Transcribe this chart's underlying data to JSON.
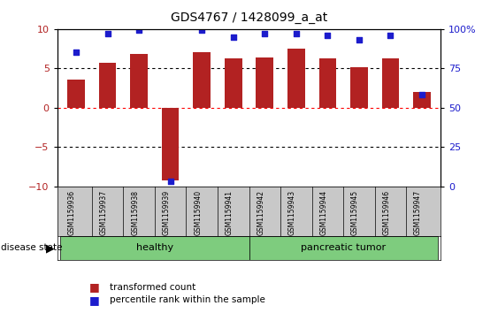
{
  "title": "GDS4767 / 1428099_a_at",
  "samples": [
    "GSM1159936",
    "GSM1159937",
    "GSM1159938",
    "GSM1159939",
    "GSM1159940",
    "GSM1159941",
    "GSM1159942",
    "GSM1159943",
    "GSM1159944",
    "GSM1159945",
    "GSM1159946",
    "GSM1159947"
  ],
  "bar_values": [
    3.5,
    5.7,
    6.8,
    -9.3,
    7.0,
    6.3,
    6.4,
    7.5,
    6.3,
    5.1,
    6.2,
    2.0
  ],
  "percentile_values": [
    85,
    97,
    99,
    3,
    99,
    95,
    97,
    97,
    96,
    93,
    96,
    58
  ],
  "bar_color": "#B22222",
  "dot_color": "#1C1CCC",
  "ylim_left": [
    -10,
    10
  ],
  "ylim_right": [
    0,
    100
  ],
  "yticks_left": [
    -10,
    -5,
    0,
    5,
    10
  ],
  "yticks_right": [
    0,
    25,
    50,
    75,
    100
  ],
  "ytick_labels_right": [
    "0",
    "25",
    "50",
    "75",
    "100%"
  ],
  "healthy_count": 6,
  "disease_state_label": "disease state",
  "legend_bar_label": "transformed count",
  "legend_dot_label": "percentile rank within the sample",
  "group_healthy_label": "healthy",
  "group_tumor_label": "pancreatic tumor",
  "cell_bg": "#C8C8C8",
  "group_green": "#7ECC7E"
}
